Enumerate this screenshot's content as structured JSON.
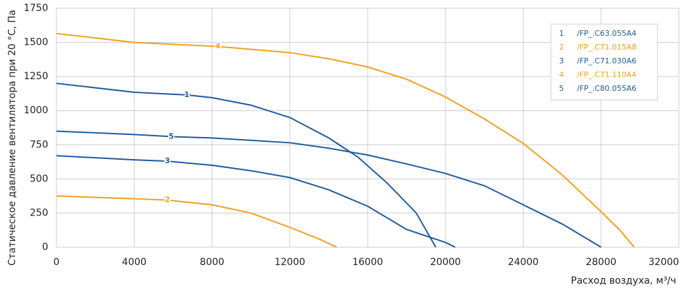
{
  "chart_data": {
    "type": "line",
    "x_label": "Расход воздуха, м³/ч",
    "y_label": "Статическое давление вентилятора при 20 °С, Па",
    "xlim": [
      0,
      32000
    ],
    "xticks": [
      0,
      4000,
      8000,
      12000,
      16000,
      20000,
      24000,
      28000,
      32000
    ],
    "ylim": [
      0,
      1750
    ],
    "yticks": [
      0,
      250,
      500,
      750,
      1000,
      1250,
      1500,
      1750
    ],
    "grid": true,
    "legend": "upper right",
    "series": [
      {
        "label": "1",
        "name": "/FP_.C63.055A4",
        "color": "#1f5a9e",
        "x": [
          0,
          4000,
          6700,
          8000,
          10000,
          12000,
          14000,
          15500,
          17000,
          18500,
          19500
        ],
        "values": [
          1200,
          1135,
          1115,
          1095,
          1040,
          950,
          800,
          660,
          470,
          250,
          0
        ]
      },
      {
        "label": "2",
        "name": "/FP_.C71.015A8",
        "color": "#f0a020",
        "x": [
          0,
          4000,
          5700,
          8000,
          10000,
          12000,
          13500,
          14400
        ],
        "values": [
          375,
          355,
          345,
          310,
          250,
          145,
          60,
          0
        ]
      },
      {
        "label": "3",
        "name": "/FP_.C71.030A6",
        "color": "#1f5a9e",
        "x": [
          0,
          4000,
          5700,
          8000,
          10000,
          12000,
          14000,
          16000,
          18000,
          20000,
          20500
        ],
        "values": [
          670,
          640,
          630,
          600,
          560,
          510,
          420,
          300,
          130,
          35,
          0
        ]
      },
      {
        "label": "4",
        "name": "/FP_.C71.110A4",
        "color": "#f0a020",
        "x": [
          0,
          4000,
          8300,
          12000,
          14000,
          16000,
          18000,
          20000,
          22000,
          24000,
          26000,
          28000,
          29000,
          29700
        ],
        "values": [
          1565,
          1500,
          1470,
          1425,
          1380,
          1320,
          1230,
          1100,
          940,
          760,
          530,
          260,
          120,
          0
        ]
      },
      {
        "label": "5",
        "name": "/FP_.C80.055A6",
        "color": "#1f5a9e",
        "x": [
          0,
          4000,
          5900,
          8000,
          12000,
          14000,
          16000,
          18000,
          20000,
          22000,
          24000,
          26000,
          28000
        ],
        "values": [
          850,
          825,
          810,
          800,
          765,
          725,
          675,
          610,
          540,
          450,
          310,
          170,
          0
        ]
      }
    ]
  }
}
